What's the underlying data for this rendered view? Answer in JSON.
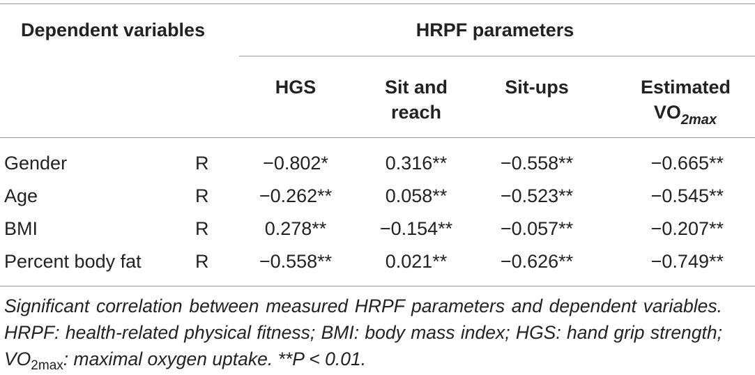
{
  "table": {
    "group_header_left": "Dependent variables",
    "group_header_right": "HRPF parameters",
    "columns": {
      "hgs": "HGS",
      "sit_reach_line1": "Sit and",
      "sit_reach_line2": "reach",
      "situps": "Sit-ups",
      "vo2_line1": "Estimated",
      "vo2_base": "VO",
      "vo2_sub": "2max"
    },
    "rows": [
      {
        "label": "Gender",
        "stat": "R",
        "hgs": "−0.802*",
        "sit_reach": "0.316**",
        "situps": "−0.558**",
        "vo2": "−0.665**"
      },
      {
        "label": "Age",
        "stat": "R",
        "hgs": "−0.262**",
        "sit_reach": "0.058**",
        "situps": "−0.523**",
        "vo2": "−0.545**"
      },
      {
        "label": "BMI",
        "stat": "R",
        "hgs": "0.278**",
        "sit_reach": "−0.154**",
        "situps": "−0.057**",
        "vo2": "−0.207**"
      },
      {
        "label": "Percent body fat",
        "stat": "R",
        "hgs": "−0.558**",
        "sit_reach": "0.021**",
        "situps": "−0.626**",
        "vo2": "−0.749**"
      }
    ]
  },
  "caption": {
    "part1": "Significant correlation between measured HRPF parameters and dependent variables. HRPF: health-related physical fitness; BMI: body mass index; HGS: hand grip strength; VO",
    "sub": "2max",
    "part2": ": maximal oxygen uptake. **P < 0.01."
  }
}
